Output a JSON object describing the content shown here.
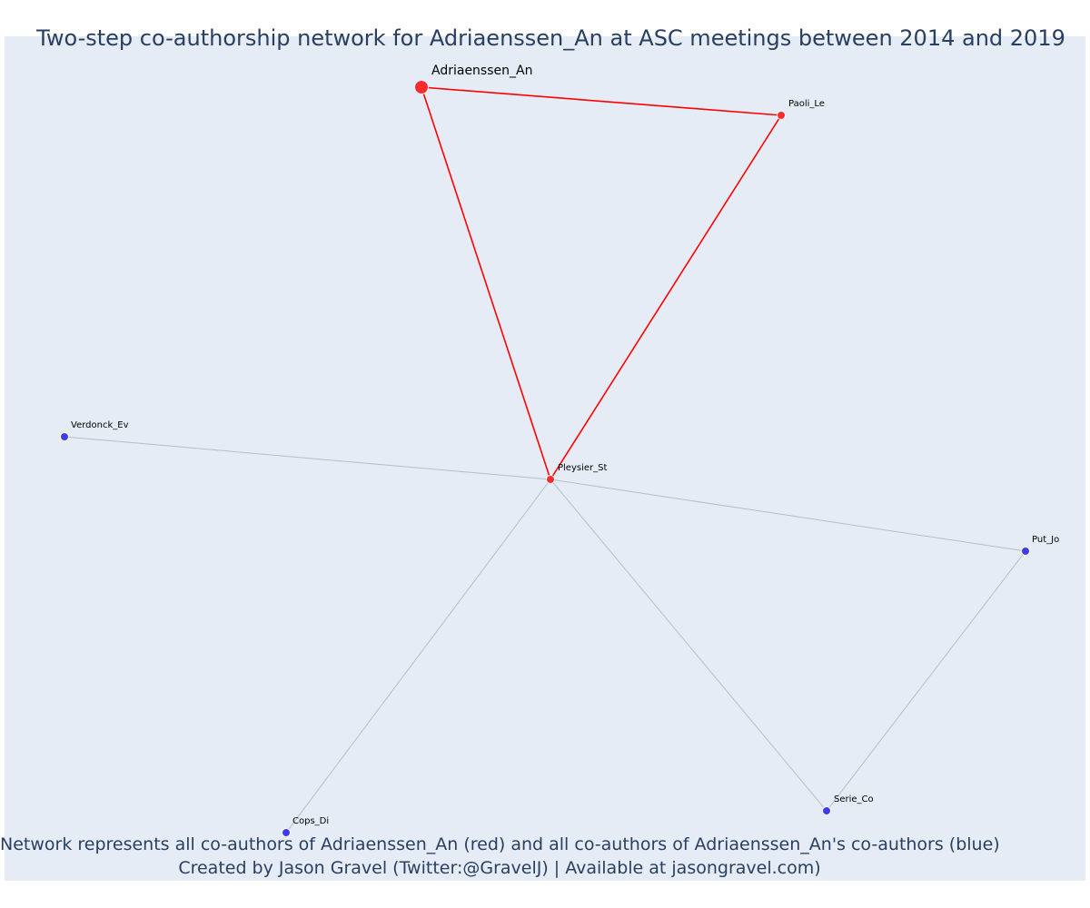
{
  "title": "Two-step co-authorship network for Adriaenssen_An at ASC meetings between 2014 and 2019",
  "footnote": {
    "line1": "Network represents all co-authors of Adriaenssen_An (red) and all co-authors of Adriaenssen_An's co-authors (blue)",
    "line2": "Created by Jason Gravel (Twitter:@GravelJ) | Available at jasongravel.com)"
  },
  "colors": {
    "ego_edge": "#ff0000",
    "alter_edge": "#b8bccb",
    "coauthor_node": "#ff2a2a",
    "second_step_node": "#3b3bf0",
    "background": "#e5ecf6",
    "title_text": "#2a3f5f"
  },
  "network": {
    "nodes": [
      {
        "id": "Adriaenssen_An",
        "label": "Adriaenssen_An",
        "group": "ego"
      },
      {
        "id": "Paoli_Le",
        "label": "Paoli_Le",
        "group": "coauthor"
      },
      {
        "id": "Pleysier_St",
        "label": "Pleysier_St",
        "group": "coauthor"
      },
      {
        "id": "Verdonck_Ev",
        "label": "Verdonck_Ev",
        "group": "second-step"
      },
      {
        "id": "Put_Jo",
        "label": "Put_Jo",
        "group": "second-step"
      },
      {
        "id": "Serie_Co",
        "label": "Serie_Co",
        "group": "second-step"
      },
      {
        "id": "Cops_Di",
        "label": "Cops_Di",
        "group": "second-step"
      }
    ],
    "edges": [
      {
        "source": "Adriaenssen_An",
        "target": "Paoli_Le",
        "type": "ego"
      },
      {
        "source": "Adriaenssen_An",
        "target": "Pleysier_St",
        "type": "ego"
      },
      {
        "source": "Paoli_Le",
        "target": "Pleysier_St",
        "type": "ego"
      },
      {
        "source": "Pleysier_St",
        "target": "Verdonck_Ev",
        "type": "alter"
      },
      {
        "source": "Pleysier_St",
        "target": "Put_Jo",
        "type": "alter"
      },
      {
        "source": "Pleysier_St",
        "target": "Serie_Co",
        "type": "alter"
      },
      {
        "source": "Pleysier_St",
        "target": "Cops_Di",
        "type": "alter"
      },
      {
        "source": "Put_Jo",
        "target": "Serie_Co",
        "type": "alter"
      }
    ]
  }
}
